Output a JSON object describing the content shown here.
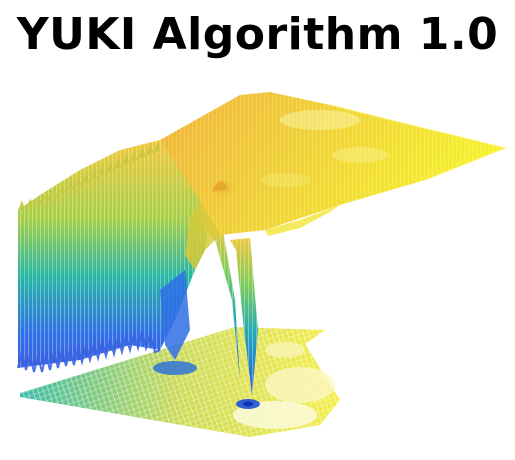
{
  "title": "YUKI Algorithm 1.0",
  "image": {
    "icon": "3d-surface-plot",
    "palette": {
      "background": "#ffffff",
      "low": "#2f6fe6",
      "mid": "#25b5a6",
      "high": "#f4ec2a",
      "peak": "#f2b52d"
    }
  }
}
